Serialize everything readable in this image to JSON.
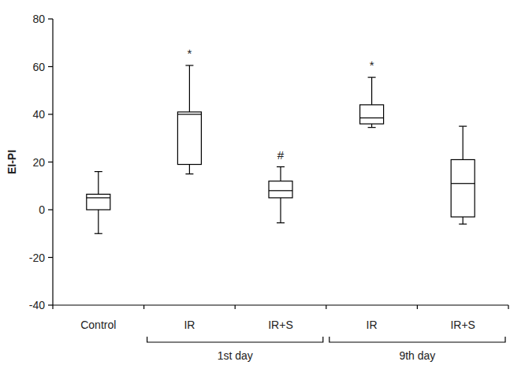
{
  "chart_data": {
    "type": "box",
    "y_label": "EI-PI",
    "categories": [
      "Control",
      "IR",
      "IR+S",
      "IR",
      "IR+S"
    ],
    "category_group": [
      null,
      "1st day",
      "1st day",
      "9th day",
      "9th day"
    ],
    "annotations": [
      null,
      "*",
      "#",
      "*",
      null
    ],
    "min": [
      -10,
      15,
      -5.5,
      34.5,
      -6
    ],
    "q1": [
      0,
      19,
      5,
      36,
      -3
    ],
    "median": [
      5,
      40,
      8,
      38.5,
      11
    ],
    "q3": [
      6.5,
      41,
      12,
      44,
      21
    ],
    "max": [
      16,
      60.5,
      18,
      55.5,
      35
    ],
    "color": "#000000",
    "ylim": [
      -40,
      80
    ],
    "yticks": [
      -40,
      -20,
      0,
      20,
      40,
      60,
      80
    ],
    "grid": false
  }
}
